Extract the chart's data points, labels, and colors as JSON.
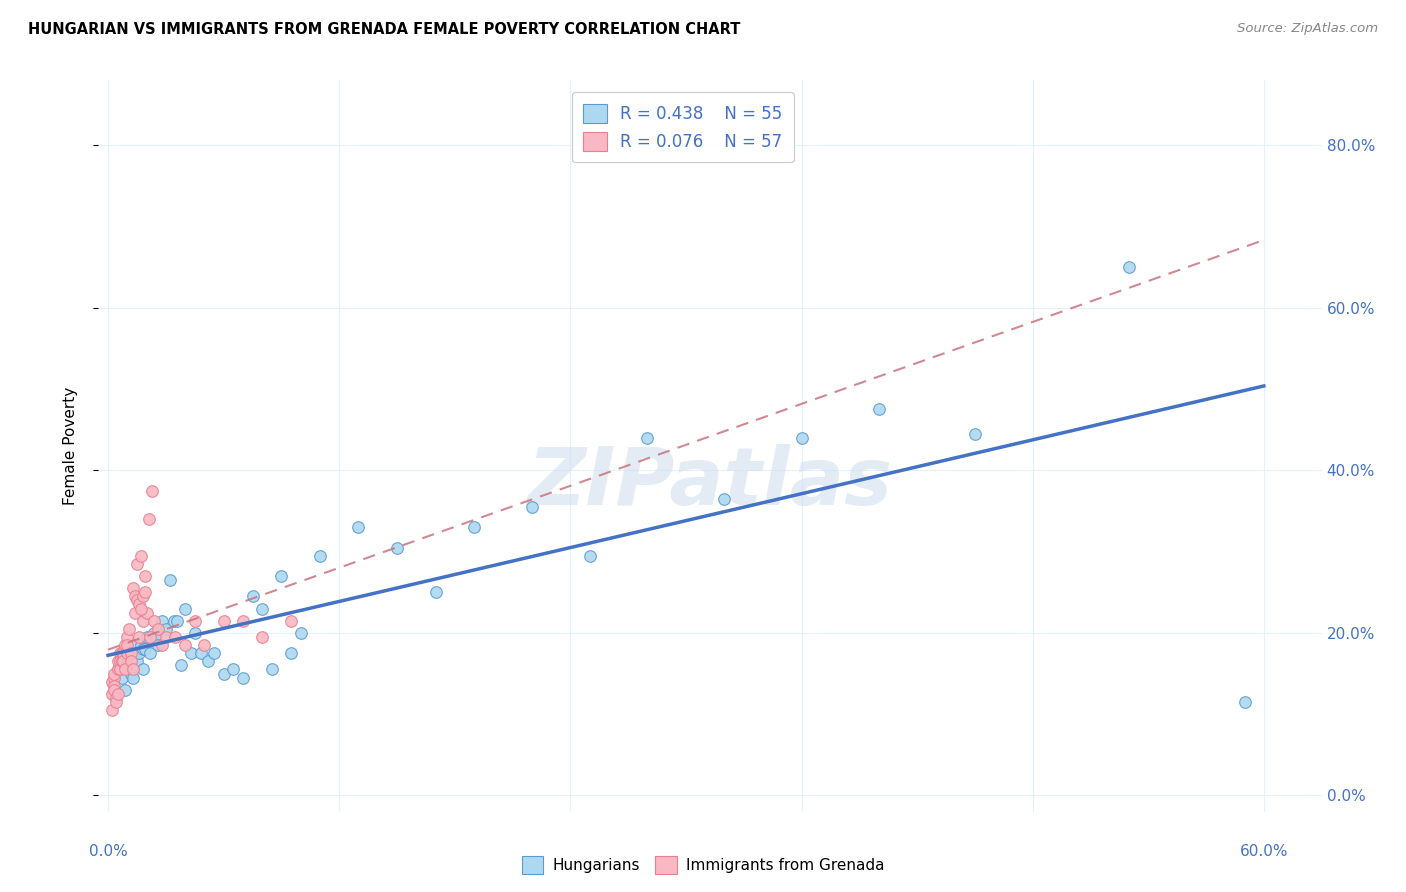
{
  "title": "HUNGARIAN VS IMMIGRANTS FROM GRENADA FEMALE POVERTY CORRELATION CHART",
  "source": "Source: ZipAtlas.com",
  "ylabel": "Female Poverty",
  "ytick_labels": [
    "0.0%",
    "20.0%",
    "40.0%",
    "60.0%",
    "80.0%"
  ],
  "ytick_values": [
    0.0,
    0.2,
    0.4,
    0.6,
    0.8
  ],
  "xtick_labels": [
    "0.0%",
    "",
    "",
    "",
    "",
    "60.0%"
  ],
  "xtick_values": [
    0.0,
    0.12,
    0.24,
    0.36,
    0.48,
    0.6
  ],
  "xlim": [
    -0.005,
    0.63
  ],
  "ylim": [
    -0.02,
    0.88
  ],
  "legend1_R": "0.438",
  "legend1_N": "55",
  "legend2_R": "0.076",
  "legend2_N": "57",
  "color_hungarian": "#ADD8F0",
  "color_grenada": "#F9B8C4",
  "color_hungarian_edge": "#5B9BD5",
  "color_grenada_edge": "#E8808E",
  "color_hungarian_line": "#4472C4",
  "color_grenada_line": "#C9747E",
  "watermark": "ZIPatlas",
  "watermark_color": "#CCDDEE",
  "hungarian_x": [
    0.005,
    0.007,
    0.008,
    0.009,
    0.01,
    0.01,
    0.012,
    0.013,
    0.014,
    0.015,
    0.016,
    0.017,
    0.018,
    0.018,
    0.019,
    0.02,
    0.022,
    0.024,
    0.025,
    0.026,
    0.028,
    0.03,
    0.032,
    0.034,
    0.036,
    0.038,
    0.04,
    0.043,
    0.045,
    0.048,
    0.052,
    0.055,
    0.06,
    0.065,
    0.07,
    0.075,
    0.08,
    0.085,
    0.09,
    0.095,
    0.1,
    0.11,
    0.13,
    0.15,
    0.17,
    0.19,
    0.22,
    0.25,
    0.28,
    0.32,
    0.36,
    0.4,
    0.45,
    0.53,
    0.59
  ],
  "hungarian_y": [
    0.155,
    0.145,
    0.165,
    0.13,
    0.16,
    0.175,
    0.15,
    0.145,
    0.185,
    0.165,
    0.175,
    0.185,
    0.155,
    0.18,
    0.18,
    0.195,
    0.175,
    0.2,
    0.195,
    0.185,
    0.215,
    0.205,
    0.265,
    0.215,
    0.215,
    0.16,
    0.23,
    0.175,
    0.2,
    0.175,
    0.165,
    0.175,
    0.15,
    0.155,
    0.145,
    0.245,
    0.23,
    0.155,
    0.27,
    0.175,
    0.2,
    0.295,
    0.33,
    0.305,
    0.25,
    0.33,
    0.355,
    0.295,
    0.44,
    0.365,
    0.44,
    0.475,
    0.445,
    0.65,
    0.115
  ],
  "grenada_x": [
    0.002,
    0.002,
    0.002,
    0.003,
    0.003,
    0.003,
    0.003,
    0.004,
    0.004,
    0.005,
    0.005,
    0.005,
    0.006,
    0.006,
    0.006,
    0.007,
    0.007,
    0.008,
    0.008,
    0.009,
    0.009,
    0.01,
    0.01,
    0.01,
    0.011,
    0.012,
    0.012,
    0.013,
    0.014,
    0.016,
    0.018,
    0.02,
    0.022,
    0.024,
    0.026,
    0.028,
    0.03,
    0.035,
    0.04,
    0.045,
    0.05,
    0.06,
    0.07,
    0.08,
    0.095,
    0.015,
    0.017,
    0.019,
    0.021,
    0.023,
    0.013,
    0.014,
    0.015,
    0.016,
    0.017,
    0.018,
    0.019
  ],
  "grenada_y": [
    0.105,
    0.125,
    0.14,
    0.145,
    0.15,
    0.135,
    0.13,
    0.12,
    0.115,
    0.155,
    0.165,
    0.125,
    0.175,
    0.165,
    0.155,
    0.175,
    0.165,
    0.175,
    0.165,
    0.155,
    0.185,
    0.175,
    0.195,
    0.185,
    0.205,
    0.175,
    0.165,
    0.155,
    0.225,
    0.195,
    0.215,
    0.225,
    0.195,
    0.215,
    0.205,
    0.185,
    0.195,
    0.195,
    0.185,
    0.215,
    0.185,
    0.215,
    0.215,
    0.195,
    0.215,
    0.285,
    0.295,
    0.27,
    0.34,
    0.375,
    0.255,
    0.245,
    0.24,
    0.235,
    0.23,
    0.245,
    0.25
  ]
}
